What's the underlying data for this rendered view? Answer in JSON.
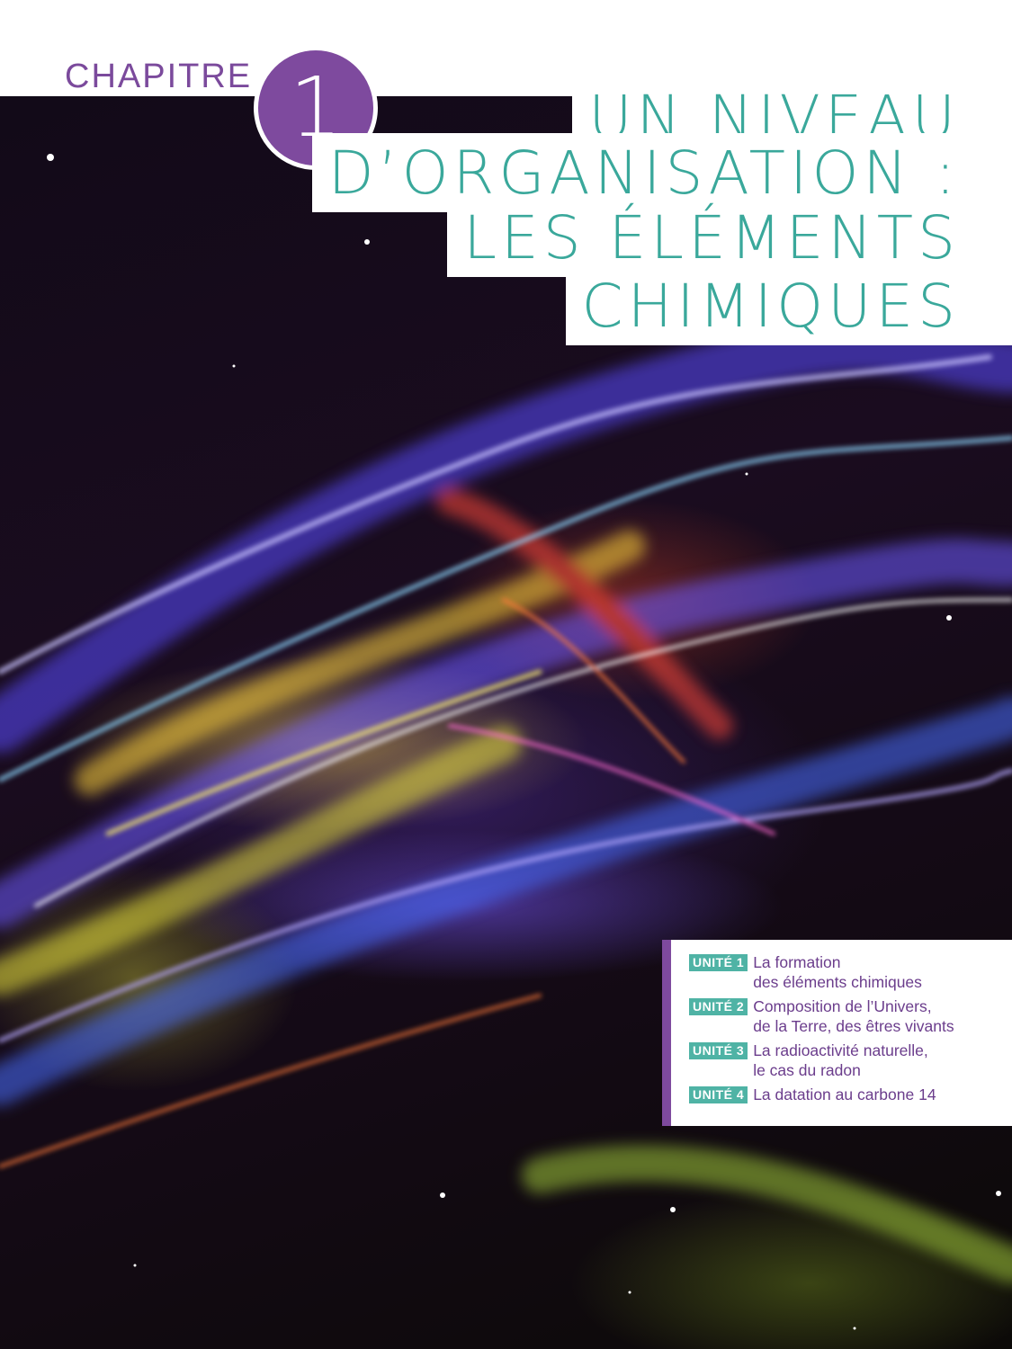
{
  "header": {
    "chapter_label": "CHAPITRE",
    "chapter_number": "1",
    "title_lines": [
      "UN NIVEAU",
      "D’ORGANISATION :",
      "LES ÉLÉMENTS",
      "CHIMIQUES"
    ]
  },
  "units": [
    {
      "tag": "UNITÉ 1",
      "line1": "La formation",
      "line2": "des éléments chimiques"
    },
    {
      "tag": "UNITÉ 2",
      "line1": "Composition de l’Univers,",
      "line2": "de la Terre, des êtres vivants"
    },
    {
      "tag": "UNITÉ 3",
      "line1": "La radioactivité naturelle,",
      "line2": "le cas du radon"
    },
    {
      "tag": "UNITÉ 4",
      "line1": "La datation au carbone 14",
      "line2": ""
    }
  ],
  "colors": {
    "accent_purple": "#7e4a9e",
    "accent_teal": "#3aa89b",
    "tag_teal": "#4fb3a5"
  },
  "background_image": "nebula-photo"
}
